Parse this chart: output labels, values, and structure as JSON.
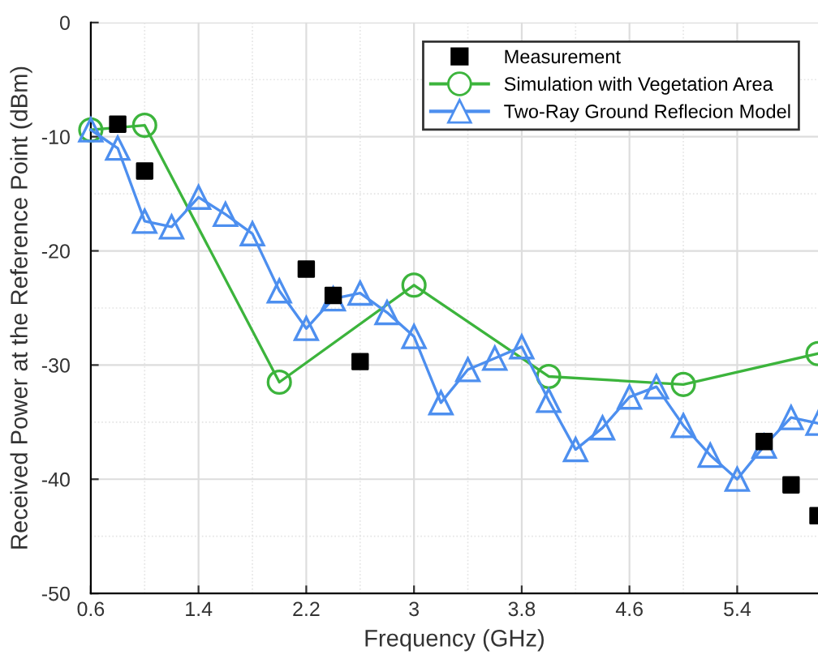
{
  "chart_data": {
    "type": "line",
    "xlabel": "Frequency (GHz)",
    "ylabel": "Received Power at the Reference Point (dBm)",
    "xlim": [
      0.6,
      6.0
    ],
    "xticks": [
      0.6,
      1.4,
      2.2,
      3,
      3.8,
      4.6,
      5.4
    ],
    "ylim": [
      -50,
      0
    ],
    "yticks": [
      -50,
      -40,
      -30,
      -20,
      -10,
      0
    ],
    "grid": true,
    "legend": "top right",
    "series": [
      {
        "name": "Measurement",
        "type": "scatter",
        "marker": "square",
        "color": "#000000",
        "x": [
          0.8,
          1.0,
          2.2,
          2.4,
          2.6,
          5.6,
          5.8,
          6.0
        ],
        "values": [
          -8.9,
          -13.0,
          -21.6,
          -23.9,
          -29.7,
          -36.7,
          -40.5,
          -43.2
        ]
      },
      {
        "name": "Simulation with Vegetation Area",
        "marker": "circle",
        "color": "#3cb43c",
        "x": [
          0.6,
          1.0,
          2.0,
          3.0,
          4.0,
          5.0,
          6.0
        ],
        "values": [
          -9.4,
          -9.0,
          -31.5,
          -23.0,
          -31.0,
          -31.7,
          -29.0
        ]
      },
      {
        "name": "Two-Ray Ground Reflecion Model",
        "marker": "triangle",
        "color": "#4d8fef",
        "x": [
          0.6,
          0.8,
          1.0,
          1.2,
          1.4,
          1.6,
          1.8,
          2.0,
          2.2,
          2.4,
          2.6,
          2.8,
          3.0,
          3.2,
          3.4,
          3.6,
          3.8,
          4.0,
          4.2,
          4.4,
          4.6,
          4.8,
          5.0,
          5.2,
          5.4,
          5.6,
          5.8,
          6.0
        ],
        "values": [
          -9.4,
          -11,
          -17.4,
          -17.9,
          -15.3,
          -16.8,
          -18.5,
          -23.5,
          -26.8,
          -24.2,
          -23.7,
          -25.4,
          -27.5,
          -33.3,
          -30.4,
          -29.4,
          -28.4,
          -33.1,
          -37.4,
          -35.5,
          -32.8,
          -31.9,
          -35.3,
          -37.9,
          -40.0,
          -37.1,
          -34.6,
          -35.1
        ]
      }
    ]
  }
}
